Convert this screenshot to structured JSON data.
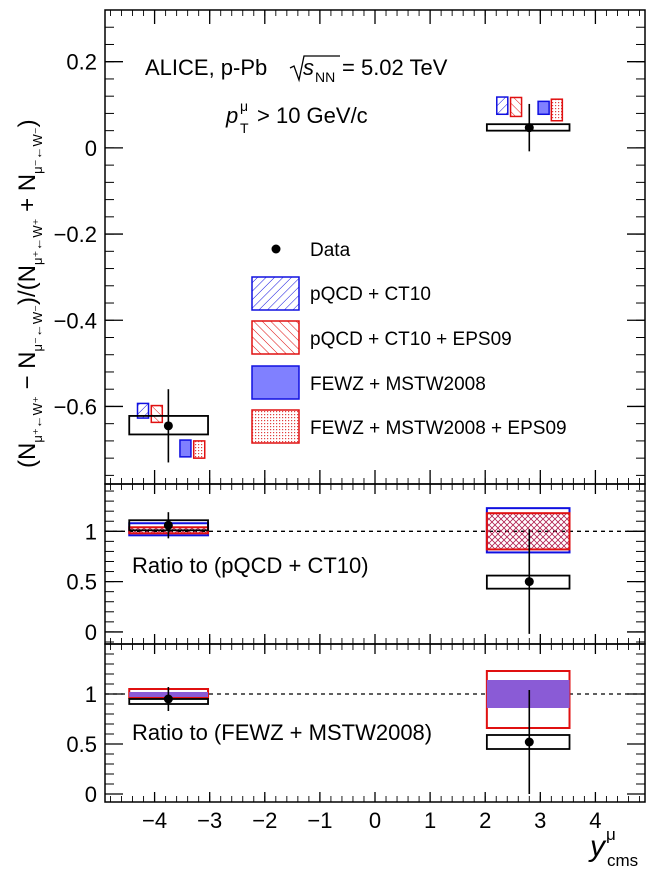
{
  "chart_data": {
    "type": "scatter",
    "annotation": {
      "experiment": "ALICE, p-Pb",
      "energy_value": "= 5.02 TeV",
      "pt_cut": "> 10 GeV/c"
    },
    "x_axis": {
      "label": "y",
      "label_sup": "μ",
      "label_sub": "cms",
      "lim": [
        -4.9,
        4.9
      ],
      "ticks": [
        -4,
        -3,
        -2,
        -1,
        0,
        1,
        2,
        3,
        4
      ],
      "tick_labels": [
        "−4",
        "−3",
        "−2",
        "−1",
        "0",
        "1",
        "2",
        "3",
        "4"
      ]
    },
    "panels": [
      {
        "id": "asymmetry",
        "ylim": [
          -0.78,
          0.32
        ],
        "ylabel": "(N_{μ⁺←W⁺} − N_{μ⁻←W⁻})/(N_{μ⁺←W⁺} + N_{μ⁻←W⁻})",
        "yticks": [
          0.2,
          0,
          -0.2,
          -0.4,
          -0.6
        ],
        "ytick_labels": [
          "0.2",
          "0",
          "−0.2",
          "−0.4",
          "−0.6"
        ],
        "data": {
          "name": "Data",
          "x": [
            -3.75,
            2.8
          ],
          "y": [
            -0.645,
            0.047
          ],
          "stat_err": [
            0.085,
            0.055
          ],
          "syst_box": [
            [
              -4.46,
              -3.03,
              -0.665,
              -0.622
            ],
            [
              2.03,
              3.53,
              0.04,
              0.055
            ]
          ]
        },
        "models": [
          {
            "name": "pQCD + CT10",
            "style": "blue-hatch",
            "boxes": [
              [
                -4.31,
                -4.11,
                -0.627,
                -0.593
              ],
              [
                2.21,
                2.41,
                0.078,
                0.118
              ]
            ]
          },
          {
            "name": "pQCD + CT10 + EPS09",
            "style": "red-hatch",
            "boxes": [
              [
                -4.06,
                -3.86,
                -0.637,
                -0.598
              ],
              [
                2.46,
                2.66,
                0.073,
                0.117
              ]
            ]
          },
          {
            "name": "FEWZ + MSTW2008",
            "style": "blue-fill",
            "boxes": [
              [
                -3.54,
                -3.34,
                -0.717,
                -0.678
              ],
              [
                2.96,
                3.16,
                0.078,
                0.108
              ]
            ]
          },
          {
            "name": "FEWZ + MSTW2008 + EPS09",
            "style": "red-dots",
            "boxes": [
              [
                -3.29,
                -3.09,
                -0.72,
                -0.68
              ],
              [
                3.2,
                3.4,
                0.063,
                0.113
              ]
            ]
          }
        ]
      },
      {
        "id": "ratio-pqcd",
        "label": "Ratio to (pQCD + CT10)",
        "ylim": [
          -0.12,
          1.47
        ],
        "yticks": [
          0,
          0.5,
          1
        ],
        "ytick_labels": [
          "0",
          "0.5",
          "1"
        ],
        "data": {
          "x": [
            -3.75,
            2.8
          ],
          "y": [
            1.06,
            0.5
          ],
          "stat_err": [
            0.13,
            0.52
          ],
          "syst_box": [
            [
              -4.46,
              -3.03,
              1.01,
              1.11
            ],
            [
              2.03,
              3.53,
              0.43,
              0.56
            ]
          ]
        },
        "bands": [
          {
            "style": "blue-outline",
            "boxes": [
              [
                -4.46,
                -3.03,
                0.96,
                1.08
              ],
              [
                2.03,
                3.53,
                0.79,
                1.23
              ]
            ]
          },
          {
            "style": "red-crosshatch",
            "boxes": [
              [
                -4.46,
                -3.03,
                0.98,
                1.04
              ],
              [
                2.03,
                3.53,
                0.82,
                1.18
              ]
            ]
          }
        ]
      },
      {
        "id": "ratio-fewz",
        "label": "Ratio to (FEWZ + MSTW2008)",
        "ylim": [
          -0.08,
          1.5
        ],
        "yticks": [
          0,
          0.5,
          1
        ],
        "ytick_labels": [
          "0",
          "0.5",
          "1"
        ],
        "data": {
          "x": [
            -3.75,
            2.8
          ],
          "y": [
            0.95,
            0.52
          ],
          "stat_err": [
            0.12,
            0.52
          ],
          "syst_box": [
            [
              -4.46,
              -3.03,
              0.9,
              0.95
            ],
            [
              2.03,
              3.53,
              0.45,
              0.59
            ]
          ]
        },
        "bands": [
          {
            "style": "red-outline",
            "boxes": [
              [
                -4.46,
                -3.03,
                0.96,
                1.05
              ],
              [
                2.03,
                3.53,
                0.66,
                1.23
              ]
            ]
          },
          {
            "style": "blue-fill",
            "boxes": [
              [
                -4.46,
                -3.03,
                0.97,
                1.02
              ],
              [
                2.03,
                3.53,
                0.86,
                1.14
              ]
            ]
          }
        ]
      }
    ],
    "legend": {
      "placement": "center",
      "entries": [
        {
          "label": "Data",
          "style": "marker"
        },
        {
          "label": "pQCD + CT10",
          "style": "blue-hatch"
        },
        {
          "label": "pQCD + CT10 + EPS09",
          "style": "red-hatch"
        },
        {
          "label": "FEWZ + MSTW2008",
          "style": "blue-fill"
        },
        {
          "label": "FEWZ + MSTW2008 + EPS09",
          "style": "red-dots"
        }
      ]
    },
    "colors": {
      "blue": "#1010e0",
      "red": "#e01010",
      "blue_fill": "#8080ff",
      "purple_fill": "#8a5bd6"
    }
  }
}
